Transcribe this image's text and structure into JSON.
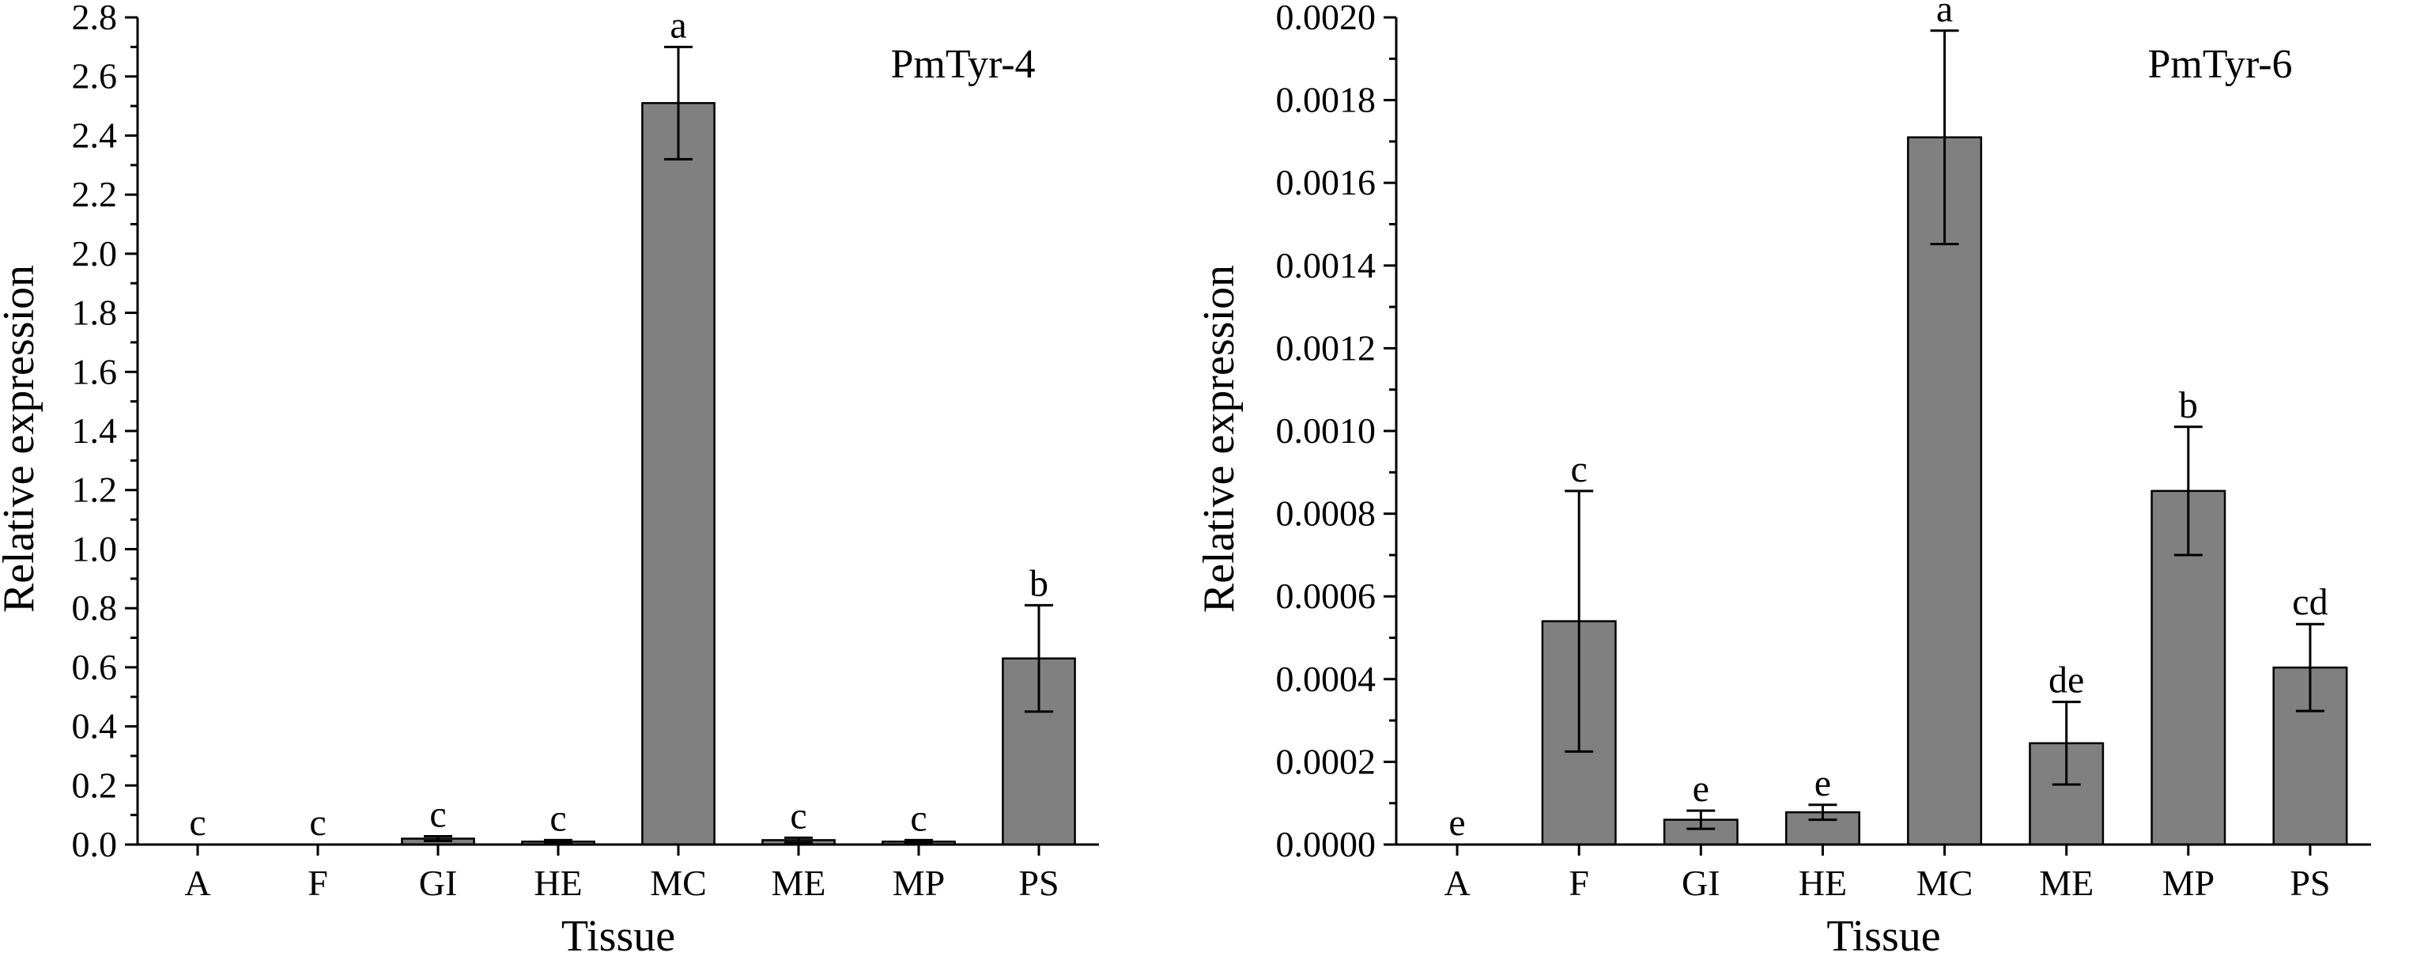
{
  "chart_data": [
    {
      "type": "bar",
      "title": "PmTyr-4",
      "xlabel": "Tissue",
      "ylabel": "Relative expression",
      "categories": [
        "A",
        "F",
        "GI",
        "HE",
        "MC",
        "ME",
        "MP",
        "PS"
      ],
      "values": [
        0.0,
        0.0,
        0.02,
        0.01,
        2.51,
        0.015,
        0.01,
        0.63
      ],
      "errors": [
        0.0,
        0.0,
        0.008,
        0.005,
        0.19,
        0.008,
        0.005,
        0.18
      ],
      "significance": [
        "c",
        "c",
        "c",
        "c",
        "a",
        "c",
        "c",
        "b"
      ],
      "ylim": [
        0,
        2.8
      ],
      "yticks": [
        0.0,
        0.2,
        0.4,
        0.6,
        0.8,
        1.0,
        1.2,
        1.4,
        1.6,
        1.8,
        2.0,
        2.2,
        2.4,
        2.6,
        2.8
      ],
      "ytick_labels": [
        "0.0",
        "0.2",
        "0.4",
        "0.6",
        "0.8",
        "1.0",
        "1.2",
        "1.4",
        "1.6",
        "1.8",
        "2.0",
        "2.2",
        "2.4",
        "2.6",
        "2.8"
      ],
      "bar_color": "#808080",
      "grid": false,
      "legend": "none"
    },
    {
      "type": "bar",
      "title": "PmTyr-6",
      "xlabel": "Tissue",
      "ylabel": "Relative expression",
      "categories": [
        "A",
        "F",
        "GI",
        "HE",
        "MC",
        "ME",
        "MP",
        "PS"
      ],
      "values": [
        0.0,
        0.00054,
        6e-05,
        7.8e-05,
        0.00171,
        0.000245,
        0.000855,
        0.000428
      ],
      "errors": [
        0.0,
        0.000315,
        2.2e-05,
        1.8e-05,
        0.000258,
        0.0001,
        0.000155,
        0.000105
      ],
      "significance": [
        "e",
        "c",
        "e",
        "e",
        "a",
        "de",
        "b",
        "cd"
      ],
      "ylim": [
        0,
        0.002
      ],
      "yticks": [
        0.0,
        0.0002,
        0.0004,
        0.0006,
        0.0008,
        0.001,
        0.0012,
        0.0014,
        0.0016,
        0.0018,
        0.002
      ],
      "ytick_labels": [
        "0.0000",
        "0.0002",
        "0.0004",
        "0.0006",
        "0.0008",
        "0.0010",
        "0.0012",
        "0.0014",
        "0.0016",
        "0.0018",
        "0.0020"
      ],
      "bar_color": "#808080",
      "grid": false,
      "legend": "none"
    }
  ]
}
